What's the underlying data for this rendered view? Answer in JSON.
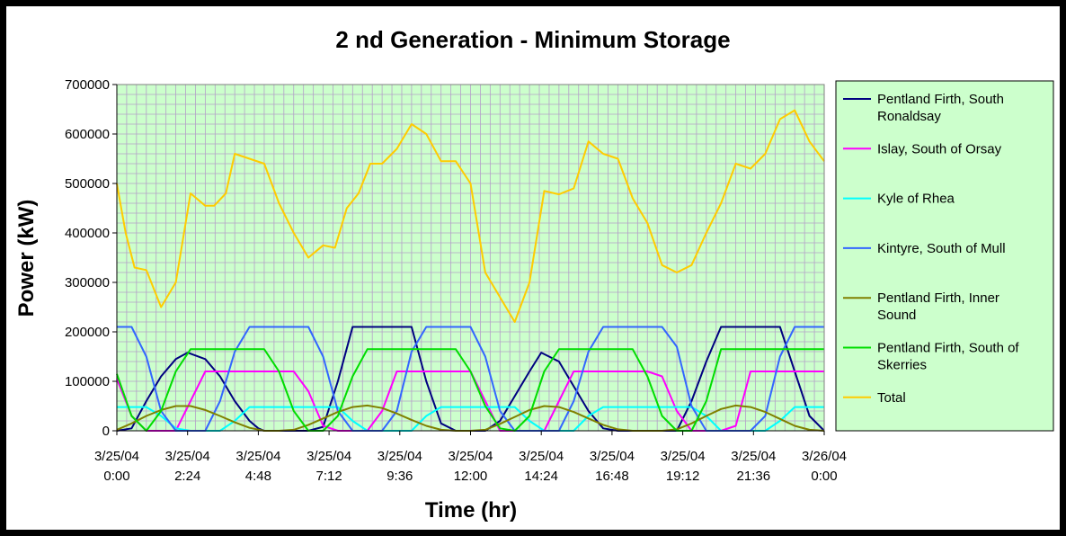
{
  "chart_data": {
    "type": "line",
    "title": "2 nd Generation - Minimum Storage",
    "xlabel": "Time (hr)",
    "ylabel": "Power (kW)",
    "ylim": [
      0,
      700000
    ],
    "xlim_hours": [
      0,
      24
    ],
    "y_ticks": [
      "0",
      "100000",
      "200000",
      "300000",
      "400000",
      "500000",
      "600000",
      "700000"
    ],
    "x_ticks": [
      {
        "date": "3/25/04",
        "time": "0:00"
      },
      {
        "date": "3/25/04",
        "time": "2:24"
      },
      {
        "date": "3/25/04",
        "time": "4:48"
      },
      {
        "date": "3/25/04",
        "time": "7:12"
      },
      {
        "date": "3/25/04",
        "time": "9:36"
      },
      {
        "date": "3/25/04",
        "time": "12:00"
      },
      {
        "date": "3/25/04",
        "time": "14:24"
      },
      {
        "date": "3/25/04",
        "time": "16:48"
      },
      {
        "date": "3/25/04",
        "time": "19:12"
      },
      {
        "date": "3/25/04",
        "time": "21:36"
      },
      {
        "date": "3/26/04",
        "time": "0:00"
      }
    ],
    "grid": true,
    "legend_position": "right",
    "plot_background": "#ccffcc",
    "series": [
      {
        "name": "Pentland Firth, South Ronaldsay",
        "color": "#000080",
        "x": [
          0,
          0.5,
          1,
          1.5,
          2,
          2.4,
          3,
          3.5,
          4,
          4.5,
          4.8,
          5,
          5.5,
          6,
          6.5,
          7,
          7.5,
          8,
          8.5,
          9,
          9.5,
          10,
          10.5,
          11,
          11.5,
          12,
          12.5,
          13,
          13.5,
          14,
          14.4,
          15,
          15.5,
          16,
          16.5,
          17,
          17.5,
          18,
          18.5,
          19,
          19.5,
          20,
          20.5,
          21,
          21.5,
          22,
          22.5,
          23,
          23.5,
          24
        ],
        "y": [
          0,
          5000,
          60000,
          110000,
          145000,
          158000,
          145000,
          110000,
          60000,
          20000,
          5000,
          0,
          0,
          0,
          0,
          8000,
          100000,
          210000,
          210000,
          210000,
          210000,
          210000,
          100000,
          15000,
          0,
          0,
          0,
          20000,
          70000,
          120000,
          158000,
          140000,
          90000,
          40000,
          5000,
          0,
          0,
          0,
          0,
          0,
          60000,
          140000,
          210000,
          210000,
          210000,
          210000,
          210000,
          120000,
          30000,
          0
        ]
      },
      {
        "name": "Islay, South of Orsay",
        "color": "#ff00ff",
        "x": [
          0,
          0.5,
          1,
          1.5,
          2,
          2.5,
          3,
          3.5,
          4,
          4.5,
          5,
          5.5,
          6,
          6.5,
          7,
          7.5,
          8,
          8.5,
          9,
          9.5,
          10,
          10.5,
          11,
          11.5,
          12,
          12.5,
          13,
          13.5,
          14,
          14.5,
          15,
          15.5,
          16,
          16.5,
          17,
          17.5,
          18,
          18.5,
          19,
          19.5,
          20,
          20.5,
          21,
          21.5,
          22,
          22.5,
          23,
          23.5,
          24
        ],
        "y": [
          105000,
          30000,
          0,
          0,
          0,
          60000,
          120000,
          120000,
          120000,
          120000,
          120000,
          120000,
          120000,
          80000,
          10000,
          0,
          0,
          0,
          40000,
          120000,
          120000,
          120000,
          120000,
          120000,
          120000,
          60000,
          0,
          0,
          0,
          0,
          60000,
          120000,
          120000,
          120000,
          120000,
          120000,
          120000,
          110000,
          40000,
          0,
          0,
          0,
          10000,
          120000,
          120000,
          120000,
          120000,
          120000,
          120000
        ]
      },
      {
        "name": "Kyle of Rhea",
        "color": "#00ffff",
        "x": [
          0,
          1,
          1.5,
          2,
          2.5,
          3,
          3.5,
          4,
          4.5,
          5,
          5.5,
          6,
          6.5,
          7,
          7.5,
          8,
          8.5,
          9,
          9.5,
          10,
          10.5,
          11,
          11.5,
          12,
          12.5,
          13,
          13.5,
          14,
          14.5,
          15,
          15.5,
          16,
          16.5,
          17,
          17.5,
          18,
          18.5,
          19,
          19.5,
          20,
          20.5,
          21,
          21.5,
          22,
          22.5,
          23,
          23.5,
          24
        ],
        "y": [
          48000,
          48000,
          30000,
          5000,
          0,
          0,
          0,
          20000,
          48000,
          48000,
          48000,
          48000,
          48000,
          48000,
          48000,
          20000,
          0,
          0,
          0,
          0,
          30000,
          48000,
          48000,
          48000,
          48000,
          48000,
          48000,
          20000,
          0,
          0,
          0,
          30000,
          48000,
          48000,
          48000,
          48000,
          48000,
          48000,
          48000,
          30000,
          0,
          0,
          0,
          0,
          20000,
          48000,
          48000,
          48000
        ]
      },
      {
        "name": "Kintyre, South of Mull",
        "color": "#3366ff",
        "x": [
          0,
          0.5,
          1,
          1.5,
          2,
          2.5,
          3,
          3.5,
          4,
          4.5,
          5,
          5.5,
          6,
          6.5,
          7,
          7.5,
          8,
          8.5,
          9,
          9.5,
          10,
          10.5,
          11,
          11.5,
          12,
          12.5,
          13,
          13.5,
          14,
          14.5,
          15,
          15.5,
          16,
          16.5,
          17,
          17.5,
          18,
          18.5,
          19,
          19.5,
          20,
          20.5,
          21,
          21.5,
          22,
          22.5,
          23,
          23.5,
          24
        ],
        "y": [
          210000,
          210000,
          150000,
          40000,
          0,
          0,
          0,
          60000,
          160000,
          210000,
          210000,
          210000,
          210000,
          210000,
          150000,
          40000,
          0,
          0,
          0,
          40000,
          160000,
          210000,
          210000,
          210000,
          210000,
          150000,
          40000,
          0,
          0,
          0,
          0,
          60000,
          160000,
          210000,
          210000,
          210000,
          210000,
          210000,
          170000,
          50000,
          0,
          0,
          0,
          0,
          30000,
          150000,
          210000,
          210000,
          210000
        ]
      },
      {
        "name": "Pentland Firth, Inner Sound",
        "color": "#808000",
        "x": [
          0,
          0.5,
          1,
          1.5,
          2,
          2.5,
          3,
          3.5,
          4,
          4.5,
          5,
          5.5,
          6,
          6.5,
          7,
          7.5,
          8,
          8.5,
          9,
          9.5,
          10,
          10.5,
          11,
          11.5,
          12,
          12.5,
          13,
          13.5,
          14,
          14.5,
          15,
          15.5,
          16,
          16.5,
          17,
          17.5,
          18,
          18.5,
          19,
          19.5,
          20,
          20.5,
          21,
          21.5,
          22,
          22.5,
          23,
          23.5,
          24
        ],
        "y": [
          2000,
          15000,
          30000,
          42000,
          50000,
          50000,
          42000,
          30000,
          17000,
          6000,
          0,
          0,
          2000,
          12000,
          25000,
          38000,
          48000,
          51000,
          46000,
          35000,
          22000,
          10000,
          2000,
          0,
          0,
          2000,
          14000,
          28000,
          42000,
          50000,
          48000,
          38000,
          25000,
          12000,
          3000,
          0,
          0,
          0,
          3000,
          15000,
          30000,
          44000,
          51000,
          48000,
          38000,
          24000,
          10000,
          2000,
          0
        ]
      },
      {
        "name": "Pentland Firth, South of Skerries",
        "color": "#00dd00",
        "x": [
          0,
          0.5,
          1,
          1.5,
          2,
          2.5,
          3,
          3.5,
          4,
          4.5,
          5,
          5.5,
          6,
          6.5,
          7,
          7.5,
          8,
          8.5,
          9,
          9.5,
          10,
          10.5,
          11,
          11.5,
          12,
          12.5,
          13,
          13.5,
          14,
          14.5,
          15,
          15.5,
          16,
          16.5,
          17,
          17.5,
          18,
          18.5,
          19,
          19.5,
          20,
          20.5,
          21,
          21.5,
          22,
          22.5,
          23,
          23.5,
          24
        ],
        "y": [
          115000,
          30000,
          0,
          40000,
          120000,
          165000,
          165000,
          165000,
          165000,
          165000,
          165000,
          120000,
          40000,
          0,
          0,
          30000,
          110000,
          165000,
          165000,
          165000,
          165000,
          165000,
          165000,
          165000,
          120000,
          50000,
          5000,
          0,
          30000,
          120000,
          165000,
          165000,
          165000,
          165000,
          165000,
          165000,
          110000,
          30000,
          0,
          0,
          60000,
          165000,
          165000,
          165000,
          165000,
          165000,
          165000,
          165000,
          165000
        ]
      },
      {
        "name": "Total",
        "color": "#ffcc00",
        "x": [
          0,
          0.3,
          0.6,
          1,
          1.5,
          2,
          2.5,
          3,
          3.3,
          3.7,
          4,
          4.5,
          5,
          5.5,
          6,
          6.5,
          7,
          7.4,
          7.8,
          8.2,
          8.6,
          9,
          9.5,
          10,
          10.5,
          11,
          11.5,
          12,
          12.5,
          13,
          13.5,
          14,
          14.5,
          15,
          15.5,
          16,
          16.5,
          17,
          17.5,
          18,
          18.5,
          19,
          19.5,
          20,
          20.5,
          21,
          21.5,
          22,
          22.5,
          23,
          23.5,
          24
        ],
        "y": [
          500000,
          400000,
          330000,
          325000,
          250000,
          300000,
          480000,
          455000,
          455000,
          480000,
          560000,
          550000,
          540000,
          460000,
          400000,
          350000,
          375000,
          370000,
          450000,
          480000,
          540000,
          540000,
          570000,
          620000,
          600000,
          545000,
          545000,
          500000,
          320000,
          270000,
          220000,
          300000,
          485000,
          478000,
          490000,
          585000,
          560000,
          550000,
          470000,
          420000,
          335000,
          320000,
          335000,
          400000,
          460000,
          540000,
          530000,
          560000,
          630000,
          648000,
          585000,
          545000
        ]
      }
    ]
  }
}
